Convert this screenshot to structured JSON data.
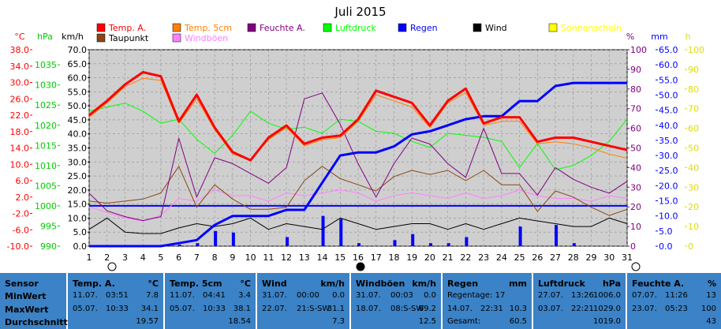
{
  "chart_data": {
    "type": "line",
    "title": "Juli 2015",
    "x": [
      1,
      2,
      3,
      4,
      5,
      6,
      7,
      8,
      9,
      10,
      11,
      12,
      13,
      14,
      15,
      16,
      17,
      18,
      19,
      20,
      21,
      22,
      23,
      24,
      25,
      26,
      27,
      28,
      29,
      30,
      31
    ],
    "x_ticks": [
      "1",
      "2",
      "3",
      "4",
      "5",
      "6",
      "7",
      "8",
      "9",
      "10",
      "11",
      "12",
      "13",
      "14",
      "15",
      "16",
      "17",
      "18",
      "19",
      "20",
      "21",
      "22",
      "23",
      "24",
      "25",
      "26",
      "27",
      "28",
      "29",
      "30",
      "31"
    ],
    "axes": [
      {
        "label": "°C",
        "color": "#ff0000",
        "ticks": [
          "38.0",
          "34.0",
          "30.0",
          "26.0",
          "22.0",
          "18.0",
          "14.0",
          "10.0",
          "6.0",
          "2.0",
          "-2.0",
          "-6.0",
          "-10.0"
        ],
        "min": -10,
        "max": 38
      },
      {
        "label": "hPa",
        "color": "#00cc00",
        "ticks": [
          "1035",
          "1030",
          "1025",
          "1020",
          "1015",
          "1010",
          "1005",
          "1000",
          "995",
          "990"
        ],
        "min": 990,
        "max": 1038.75
      },
      {
        "label": "km/h",
        "color": "#000000",
        "ticks": [
          "70.0",
          "65.0",
          "60.0",
          "55.0",
          "50.0",
          "45.0",
          "40.0",
          "35.0",
          "30.0",
          "25.0",
          "20.0",
          "15.0",
          "10.0",
          "5.0",
          "0.0"
        ],
        "min": 0,
        "max": 70
      },
      {
        "label": "%",
        "color": "#800080",
        "ticks": [
          "100",
          "90",
          "80",
          "70",
          "60",
          "50",
          "40",
          "30",
          "20",
          "10",
          "0"
        ],
        "min": 0,
        "max": 100
      },
      {
        "label": "mm",
        "color": "#0000ff",
        "ticks": [
          "65.0",
          "60.0",
          "55.0",
          "50.0",
          "45.0",
          "40.0",
          "35.0",
          "30.0",
          "25.0",
          "20.0",
          "15.0",
          "10.0",
          "5.0",
          "0.0"
        ],
        "min": 0,
        "max": 65
      },
      {
        "label": "h",
        "color": "#dddd00",
        "ticks": [
          "100",
          "90",
          "80",
          "70",
          "60",
          "50",
          "40",
          "30",
          "20",
          "10",
          "0"
        ],
        "min": 0,
        "max": 100
      }
    ],
    "legend": [
      {
        "name": "Temp. A.",
        "color": "#ff0000"
      },
      {
        "name": "Temp. 5cm",
        "color": "#ff8000"
      },
      {
        "name": "Feuchte A.",
        "color": "#800080"
      },
      {
        "name": "Luftdruck",
        "color": "#00ff00"
      },
      {
        "name": "Regen",
        "color": "#0000ff"
      },
      {
        "name": "Wind",
        "color": "#000000"
      },
      {
        "name": "Sonnenschein",
        "color": "#ffff00"
      },
      {
        "name": "Taupunkt",
        "color": "#8b4513"
      },
      {
        "name": "Windböen",
        "color": "#ff80ff"
      }
    ],
    "series": [
      {
        "name": "Temp. A.",
        "axis": 0,
        "color": "#ff0000",
        "width": 3,
        "values": [
          22.0,
          25.5,
          29.5,
          32.5,
          31.5,
          20.5,
          27.0,
          19.0,
          13.0,
          11.0,
          16.5,
          19.5,
          15.0,
          16.5,
          17.0,
          21.0,
          28.0,
          26.5,
          25.0,
          19.5,
          25.5,
          28.5,
          20.0,
          21.5,
          21.5,
          15.5,
          16.5,
          16.5,
          15.5,
          14.5,
          13.5
        ]
      },
      {
        "name": "Temp. 5cm",
        "axis": 0,
        "color": "#ff8000",
        "width": 1,
        "values": [
          21.5,
          25.0,
          29.0,
          31.0,
          30.5,
          20.0,
          26.0,
          18.5,
          12.5,
          11.0,
          16.0,
          19.0,
          14.5,
          16.0,
          16.5,
          20.5,
          27.0,
          25.5,
          24.0,
          19.0,
          25.0,
          27.5,
          19.5,
          20.5,
          20.5,
          15.0,
          15.5,
          15.0,
          14.0,
          12.5,
          11.5
        ]
      },
      {
        "name": "Feuchte A.",
        "axis": 3,
        "color": "#800080",
        "width": 1,
        "values": [
          27,
          18,
          15,
          13,
          15,
          55,
          25,
          45,
          42,
          37,
          32,
          40,
          75,
          78,
          62,
          42,
          25,
          42,
          55,
          52,
          42,
          35,
          60,
          37,
          37,
          26,
          40,
          34,
          30,
          27,
          33
        ]
      },
      {
        "name": "Luftdruck",
        "axis": 1,
        "color": "#00ff00",
        "width": 1,
        "values": [
          1023.5,
          1024.5,
          1025.5,
          1023.5,
          1020.5,
          1021.5,
          1016.5,
          1013,
          1017.5,
          1023.5,
          1020.5,
          1019,
          1019.5,
          1018,
          1021.5,
          1021,
          1018.5,
          1018,
          1016,
          1014.5,
          1018,
          1017.5,
          1017,
          1016,
          1009.5,
          1015.5,
          1009,
          1010,
          1012.5,
          1016,
          1021.5
        ]
      },
      {
        "name": "Regen",
        "axis": 4,
        "color": "#0000ff",
        "width": 3,
        "values": [
          0,
          0,
          0,
          0,
          0,
          1,
          2,
          7,
          10,
          10,
          10,
          12,
          12,
          21,
          30,
          31,
          31,
          33,
          37,
          38,
          40,
          42,
          43,
          43,
          48,
          48,
          53,
          54,
          54,
          54,
          54
        ]
      },
      {
        "name": "Taupunkt",
        "axis": 0,
        "color": "#8b4513",
        "width": 1,
        "values": [
          1.0,
          0.5,
          1.0,
          1.5,
          3.0,
          9.5,
          -0.5,
          5.0,
          1.5,
          -1.0,
          -1.0,
          -0.5,
          6.0,
          9.5,
          6.5,
          5.0,
          3.5,
          7.0,
          8.5,
          7.5,
          8.5,
          6.0,
          8.5,
          5.0,
          5.0,
          -1.5,
          3.5,
          2.0,
          -0.5,
          -2.5,
          -1.0
        ]
      },
      {
        "name": "Wind",
        "axis": 2,
        "color": "#000000",
        "width": 1,
        "values": [
          6,
          10,
          5,
          4.5,
          4.5,
          6.5,
          8,
          7,
          8,
          10,
          6,
          8,
          7,
          6,
          10,
          8,
          6,
          7,
          8,
          8,
          6,
          8,
          6,
          8,
          10,
          9,
          8,
          7,
          7,
          10,
          8
        ]
      },
      {
        "name": "Windböen",
        "axis": 2,
        "color": "#ff80ff",
        "width": 1,
        "values": [
          14,
          12,
          10,
          9,
          11,
          17,
          16,
          20,
          18,
          18,
          16,
          19,
          18,
          19,
          20,
          19,
          16,
          18,
          19,
          18,
          17,
          19,
          17,
          18,
          20,
          18,
          17,
          17,
          16,
          18,
          17
        ]
      }
    ],
    "bars": {
      "name": "Regen",
      "axis": 4,
      "color": "#0000ff",
      "values": [
        0,
        0,
        0,
        0,
        0,
        0.5,
        1,
        5,
        4.5,
        0,
        0,
        3,
        0,
        10,
        9,
        1,
        0,
        2,
        4,
        1,
        1,
        3,
        0,
        0,
        6.5,
        0,
        7,
        1,
        0,
        0,
        0
      ]
    },
    "reference_line": {
      "axis": 1,
      "value": 1000,
      "color": "#0000ff"
    }
  },
  "stats": [
    {
      "key": "label",
      "header": "Sensor",
      "unit": "",
      "rows": [
        "MinWert",
        "MaxWert",
        "Durchschnitt"
      ]
    },
    {
      "key": "temp_a",
      "header": "Temp. A.",
      "unit": "°C",
      "rows": [
        [
          "11.07.",
          "03:51",
          "7.8"
        ],
        [
          "05.07.",
          "10:33",
          "34.1"
        ],
        [
          "",
          "",
          "19.57"
        ]
      ]
    },
    {
      "key": "temp_5cm",
      "header": "Temp. 5cm",
      "unit": "°C",
      "rows": [
        [
          "11.07.",
          "04:41",
          "3.4"
        ],
        [
          "05.07.",
          "10:33",
          "38.1"
        ],
        [
          "",
          "",
          "18.54"
        ]
      ]
    },
    {
      "key": "wind",
      "header": "Wind",
      "unit": "km/h",
      "rows": [
        [
          "31.07.",
          "00:00",
          "0.0"
        ],
        [
          "22.07.",
          "21:S-SW",
          "31.1"
        ],
        [
          "",
          "",
          "7.3"
        ]
      ]
    },
    {
      "key": "gusts",
      "header": "Windböen",
      "unit": "km/h",
      "rows": [
        [
          "31.07.",
          "00:03",
          "0.0"
        ],
        [
          "18.07.",
          "08:S-SW",
          "69.2"
        ],
        [
          "",
          "",
          "12.5"
        ]
      ]
    },
    {
      "key": "rain",
      "header": "Regen",
      "unit": "mm",
      "rows": [
        [
          "Regentage: 17",
          "",
          ""
        ],
        [
          "14.07.",
          "22:31",
          "10.3"
        ],
        [
          "Gesamt:",
          "",
          "60.5"
        ]
      ]
    },
    {
      "key": "pressure",
      "header": "Luftdruck",
      "unit": "hPa",
      "rows": [
        [
          "27.07.",
          "13:26",
          "1006.0"
        ],
        [
          "03.07.",
          "22:21",
          "1029.0"
        ],
        [
          "",
          "",
          "1019.0"
        ]
      ]
    },
    {
      "key": "humidity",
      "header": "Feuchte A.",
      "unit": "%",
      "rows": [
        [
          "07.07.",
          "11:26",
          "13"
        ],
        [
          "23.07.",
          "05:23",
          "100"
        ],
        [
          "",
          "",
          "43"
        ]
      ]
    }
  ]
}
